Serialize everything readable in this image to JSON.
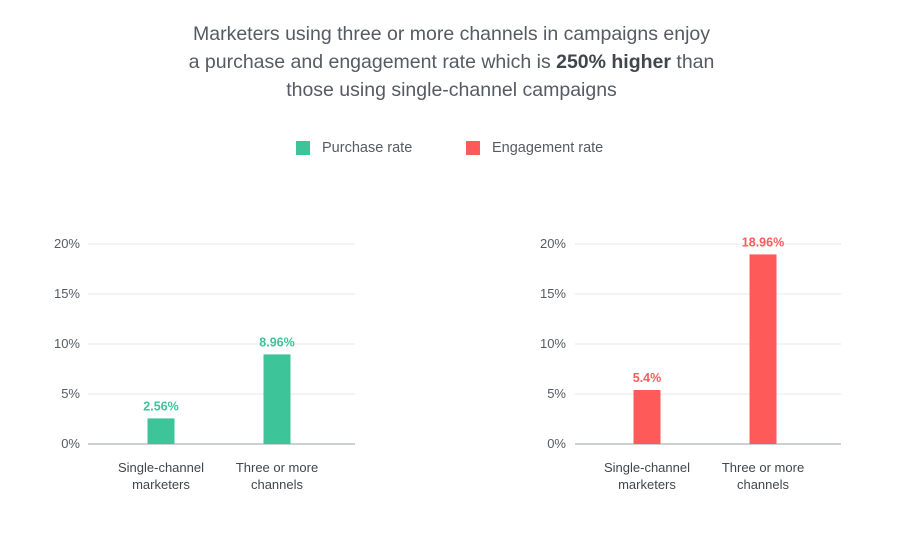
{
  "title": {
    "line1": "Marketers using three or more channels in campaigns enjoy",
    "line2_pre": "a purchase and engagement rate which is ",
    "line2_bold": "250% higher",
    "line2_post": " than",
    "line3": "those using single-channel campaigns"
  },
  "legend": [
    {
      "label": "Purchase rate",
      "color": "#3dc498"
    },
    {
      "label": "Engagement rate",
      "color": "#ff5a5a"
    }
  ],
  "chart_data": [
    {
      "type": "bar",
      "categories": [
        [
          "Single-channel",
          "marketers"
        ],
        [
          "Three or more",
          "channels"
        ]
      ],
      "series": [
        {
          "name": "Purchase rate",
          "values": [
            2.56,
            8.96
          ],
          "color": "#3dc498"
        }
      ],
      "value_labels": [
        "2.56%",
        "8.96%"
      ],
      "yticks": [
        "0%",
        "5%",
        "10%",
        "15%",
        "20%"
      ],
      "ylim": [
        0,
        20
      ],
      "grid": true
    },
    {
      "type": "bar",
      "categories": [
        [
          "Single-channel",
          "marketers"
        ],
        [
          "Three or more",
          "channels"
        ]
      ],
      "series": [
        {
          "name": "Engagement rate",
          "values": [
            5.4,
            18.96
          ],
          "color": "#ff5a5a"
        }
      ],
      "value_labels": [
        "5.4%",
        "18.96%"
      ],
      "yticks": [
        "0%",
        "5%",
        "10%",
        "15%",
        "20%"
      ],
      "ylim": [
        0,
        20
      ],
      "grid": true
    }
  ]
}
